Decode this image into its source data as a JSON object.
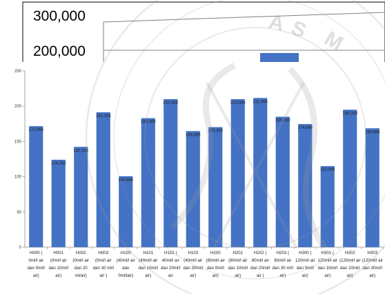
{
  "chart_data": [
    {
      "type": "bar",
      "title": "",
      "xlabel": "",
      "ylabel": "",
      "yticks": [
        "300,000",
        "200,000"
      ],
      "note": "partially hidden background chart",
      "colors": {
        "bar": "#4472C4",
        "axis": "#7f7f7f"
      }
    },
    {
      "type": "bar",
      "title": "",
      "xlabel": "",
      "ylabel": "",
      "ylim": [
        0,
        250
      ],
      "yticks": [
        "0",
        "50",
        "100",
        "150",
        "200",
        "250"
      ],
      "grid": false,
      "legend": "none",
      "categories": [
        [
          "H000 (",
          "0ml/l air",
          "dan 0ml/l",
          "air)"
        ],
        [
          "H001",
          "(0ml/l air",
          "dan 10ml/l",
          "air)"
        ],
        [
          "H002",
          "(0ml/l air",
          "dan 20",
          "ml/air)"
        ],
        [
          "H003",
          "(0ml/l air",
          "dan 30 ml/l",
          "air )"
        ],
        [
          "H100",
          "(40ml/l air",
          "dan",
          "0ml/lair)"
        ],
        [
          "H101",
          "(40ml/l air",
          "dan 10ml/l",
          "air)"
        ],
        [
          "H102 (",
          "40ml/l air",
          "dan 20ml/l",
          "air"
        ],
        [
          "H103",
          "(40ml/l air",
          "dan 30ml/l",
          "air)"
        ],
        [
          "H200",
          "(80ml/l air",
          "dan 0ml/l",
          "air)"
        ],
        [
          "H201",
          "(80ml/l air",
          "dan 10ml/l",
          "air)"
        ],
        [
          "H202 (",
          "80ml/l air",
          "dan 20ml/l",
          "air )"
        ],
        [
          "H203 (",
          "80ml/l air",
          "dan 30 ml/l",
          "air)"
        ],
        [
          "H300 (",
          "120ml/l air",
          "dan 0ml/l",
          "air)"
        ],
        [
          "H301 (",
          "120ml/l air",
          "dan 10ml/l",
          "air)"
        ],
        [
          "H302",
          "(120ml/l air",
          "dan 20ml/l",
          "air)"
        ],
        [
          "H303",
          "(120ml/l air",
          "dan 30ml/l",
          "air)"
        ]
      ],
      "values": [
        171.666,
        124.0,
        142.333,
        191.333,
        100.666,
        183.0,
        210.0,
        164.666,
        170.333,
        210.0,
        211.666,
        185.0,
        174.666,
        115.0,
        195.0,
        168.666
      ],
      "data_labels": [
        "171,666",
        "124,000",
        "142,333",
        "191,333",
        "100,666",
        "183,000",
        "210,000",
        "164,666",
        "170,333",
        "210,000",
        "211,666",
        "185,000",
        "174,666",
        "115,000",
        "195,000",
        "168,666"
      ],
      "colors": {
        "bar": "#4472C4",
        "axis": "#8c8c8c",
        "text": "#333333"
      }
    }
  ]
}
